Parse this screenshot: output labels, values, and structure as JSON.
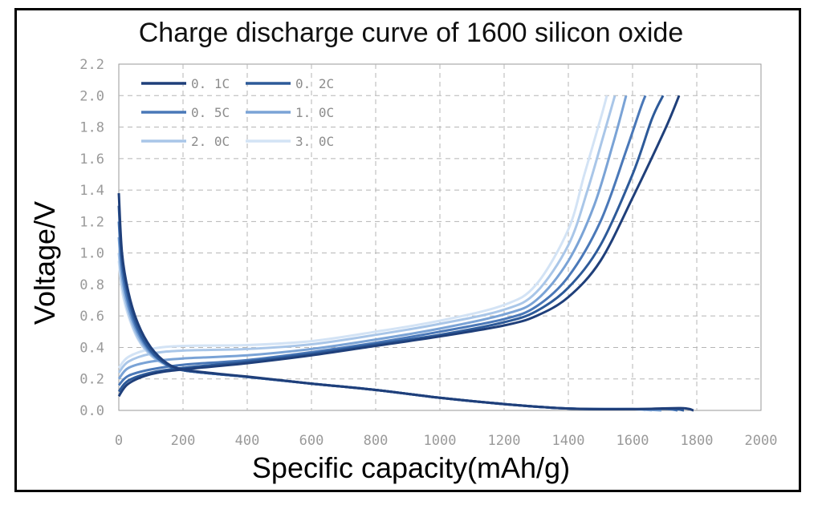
{
  "chart_data": {
    "type": "line",
    "title": "Charge discharge curve of 1600 silicon oxide",
    "xlabel": "Specific capacity(mAh/g)",
    "ylabel": "Voltage/V",
    "xlim": [
      0,
      2000
    ],
    "ylim": [
      0,
      2.2
    ],
    "x_ticks": [
      "0",
      "200",
      "400",
      "600",
      "800",
      "1000",
      "1200",
      "1400",
      "1600",
      "1800",
      "2000"
    ],
    "y_ticks": [
      "0.0",
      "0.2",
      "0.4",
      "0.6",
      "0.8",
      "1.0",
      "1.2",
      "1.4",
      "1.6",
      "1.8",
      "2.0",
      "2.2"
    ],
    "grid": true,
    "legend_position": "top-left",
    "series": [
      {
        "name": "0. 1C",
        "color": "#1f3f7a",
        "discharge": [
          [
            0,
            1.38
          ],
          [
            10,
            1.0
          ],
          [
            30,
            0.75
          ],
          [
            60,
            0.55
          ],
          [
            100,
            0.4
          ],
          [
            150,
            0.3
          ],
          [
            200,
            0.26
          ],
          [
            300,
            0.235
          ],
          [
            400,
            0.215
          ],
          [
            600,
            0.17
          ],
          [
            800,
            0.13
          ],
          [
            1000,
            0.08
          ],
          [
            1200,
            0.04
          ],
          [
            1400,
            0.012
          ],
          [
            1600,
            0.008
          ],
          [
            1750,
            0.015
          ],
          [
            1790,
            0.0
          ]
        ],
        "charge": [
          [
            0,
            0.09
          ],
          [
            30,
            0.17
          ],
          [
            100,
            0.23
          ],
          [
            200,
            0.26
          ],
          [
            400,
            0.3
          ],
          [
            600,
            0.35
          ],
          [
            800,
            0.41
          ],
          [
            1000,
            0.47
          ],
          [
            1200,
            0.54
          ],
          [
            1300,
            0.6
          ],
          [
            1400,
            0.72
          ],
          [
            1500,
            0.95
          ],
          [
            1600,
            1.35
          ],
          [
            1700,
            1.78
          ],
          [
            1745,
            2.0
          ]
        ]
      },
      {
        "name": "0. 2C",
        "color": "#2d5a99",
        "discharge": [
          [
            0,
            1.3
          ],
          [
            10,
            0.95
          ],
          [
            30,
            0.72
          ],
          [
            60,
            0.52
          ],
          [
            100,
            0.38
          ],
          [
            150,
            0.29
          ],
          [
            200,
            0.255
          ],
          [
            300,
            0.232
          ],
          [
            400,
            0.213
          ],
          [
            600,
            0.17
          ],
          [
            800,
            0.13
          ],
          [
            1000,
            0.08
          ],
          [
            1200,
            0.04
          ],
          [
            1400,
            0.012
          ],
          [
            1600,
            0.008
          ],
          [
            1720,
            0.01
          ],
          [
            1760,
            0.0
          ]
        ],
        "charge": [
          [
            0,
            0.12
          ],
          [
            30,
            0.19
          ],
          [
            100,
            0.24
          ],
          [
            200,
            0.27
          ],
          [
            400,
            0.31
          ],
          [
            600,
            0.36
          ],
          [
            800,
            0.42
          ],
          [
            1000,
            0.48
          ],
          [
            1200,
            0.56
          ],
          [
            1300,
            0.63
          ],
          [
            1400,
            0.78
          ],
          [
            1500,
            1.05
          ],
          [
            1600,
            1.5
          ],
          [
            1660,
            1.85
          ],
          [
            1695,
            2.0
          ]
        ]
      },
      {
        "name": "0. 5C",
        "color": "#4a78b8",
        "discharge": [
          [
            0,
            1.2
          ],
          [
            10,
            0.9
          ],
          [
            30,
            0.68
          ],
          [
            60,
            0.5
          ],
          [
            100,
            0.37
          ],
          [
            150,
            0.29
          ],
          [
            200,
            0.255
          ],
          [
            300,
            0.232
          ],
          [
            400,
            0.213
          ],
          [
            600,
            0.17
          ],
          [
            800,
            0.13
          ],
          [
            1000,
            0.08
          ],
          [
            1200,
            0.04
          ],
          [
            1400,
            0.012
          ],
          [
            1600,
            0.008
          ],
          [
            1700,
            0.01
          ],
          [
            1740,
            0.0
          ]
        ],
        "charge": [
          [
            0,
            0.16
          ],
          [
            30,
            0.22
          ],
          [
            100,
            0.26
          ],
          [
            200,
            0.29
          ],
          [
            400,
            0.32
          ],
          [
            600,
            0.37
          ],
          [
            800,
            0.43
          ],
          [
            1000,
            0.5
          ],
          [
            1200,
            0.58
          ],
          [
            1300,
            0.66
          ],
          [
            1400,
            0.85
          ],
          [
            1500,
            1.2
          ],
          [
            1580,
            1.65
          ],
          [
            1625,
            1.92
          ],
          [
            1640,
            2.0
          ]
        ]
      },
      {
        "name": "1. 0C",
        "color": "#7aa3d6",
        "discharge": [
          [
            0,
            1.1
          ],
          [
            10,
            0.85
          ],
          [
            30,
            0.65
          ],
          [
            60,
            0.48
          ],
          [
            100,
            0.36
          ],
          [
            150,
            0.29
          ],
          [
            200,
            0.255
          ],
          [
            300,
            0.232
          ],
          [
            400,
            0.213
          ],
          [
            600,
            0.17
          ],
          [
            800,
            0.13
          ],
          [
            1000,
            0.08
          ],
          [
            1200,
            0.04
          ],
          [
            1400,
            0.012
          ],
          [
            1600,
            0.008
          ],
          [
            1690,
            0.0
          ]
        ],
        "charge": [
          [
            0,
            0.2
          ],
          [
            30,
            0.27
          ],
          [
            100,
            0.31
          ],
          [
            200,
            0.33
          ],
          [
            400,
            0.35
          ],
          [
            600,
            0.39
          ],
          [
            800,
            0.45
          ],
          [
            1000,
            0.52
          ],
          [
            1200,
            0.61
          ],
          [
            1300,
            0.7
          ],
          [
            1400,
            0.95
          ],
          [
            1480,
            1.3
          ],
          [
            1540,
            1.7
          ],
          [
            1580,
            2.0
          ]
        ]
      },
      {
        "name": "2. 0C",
        "color": "#a9c6e8",
        "discharge": [
          [
            0,
            1.0
          ],
          [
            10,
            0.8
          ],
          [
            30,
            0.62
          ],
          [
            60,
            0.46
          ],
          [
            100,
            0.35
          ],
          [
            150,
            0.285
          ],
          [
            200,
            0.255
          ],
          [
            300,
            0.232
          ],
          [
            400,
            0.213
          ],
          [
            600,
            0.17
          ],
          [
            800,
            0.13
          ],
          [
            1000,
            0.08
          ],
          [
            1200,
            0.04
          ],
          [
            1400,
            0.012
          ],
          [
            1600,
            0.008
          ],
          [
            1660,
            0.0
          ]
        ],
        "charge": [
          [
            0,
            0.24
          ],
          [
            30,
            0.31
          ],
          [
            100,
            0.36
          ],
          [
            200,
            0.38
          ],
          [
            400,
            0.39
          ],
          [
            600,
            0.42
          ],
          [
            800,
            0.48
          ],
          [
            1000,
            0.55
          ],
          [
            1200,
            0.64
          ],
          [
            1300,
            0.75
          ],
          [
            1400,
            1.05
          ],
          [
            1460,
            1.4
          ],
          [
            1510,
            1.75
          ],
          [
            1545,
            2.0
          ]
        ]
      },
      {
        "name": "3. 0C",
        "color": "#d3e3f5",
        "discharge": [
          [
            0,
            0.95
          ],
          [
            10,
            0.76
          ],
          [
            30,
            0.6
          ],
          [
            60,
            0.45
          ],
          [
            100,
            0.35
          ],
          [
            150,
            0.285
          ],
          [
            200,
            0.255
          ],
          [
            300,
            0.232
          ],
          [
            400,
            0.213
          ],
          [
            600,
            0.17
          ],
          [
            800,
            0.13
          ],
          [
            1000,
            0.08
          ],
          [
            1200,
            0.04
          ],
          [
            1400,
            0.012
          ],
          [
            1600,
            0.008
          ],
          [
            1640,
            0.0
          ]
        ],
        "charge": [
          [
            0,
            0.27
          ],
          [
            30,
            0.34
          ],
          [
            100,
            0.39
          ],
          [
            200,
            0.41
          ],
          [
            400,
            0.415
          ],
          [
            600,
            0.44
          ],
          [
            800,
            0.5
          ],
          [
            1000,
            0.57
          ],
          [
            1200,
            0.67
          ],
          [
            1300,
            0.8
          ],
          [
            1400,
            1.15
          ],
          [
            1450,
            1.5
          ],
          [
            1500,
            1.85
          ],
          [
            1520,
            2.0
          ]
        ]
      }
    ]
  }
}
